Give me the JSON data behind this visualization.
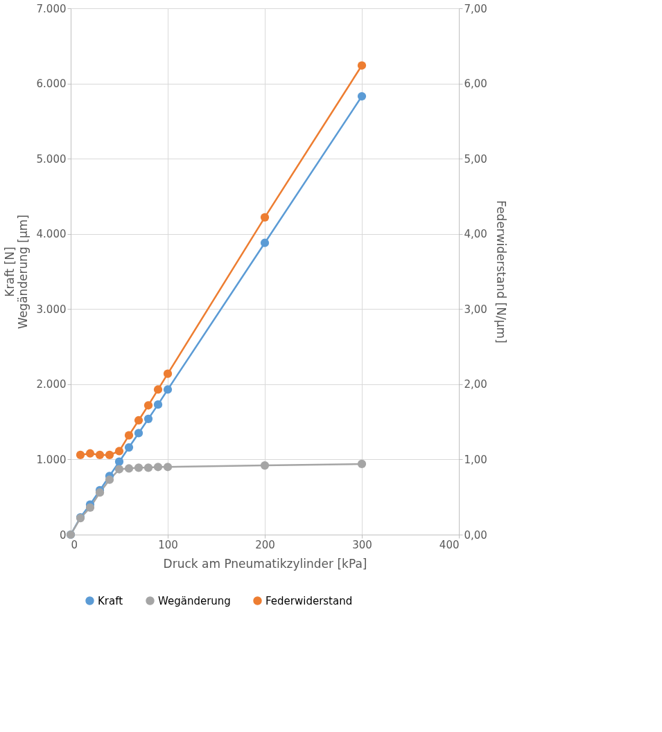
{
  "chart_data": {
    "type": "line",
    "xlabel": "Druck am Pneumatikzylinder [kPa]",
    "ylabel": "Kraft [N]\nWegänderung [µm]",
    "y2label": "Federwiderstand [N/µm]",
    "xlim": [
      0,
      400
    ],
    "xticks": [
      0,
      100,
      200,
      300,
      400
    ],
    "ylim": [
      0,
      7000
    ],
    "yticks": [
      0,
      {
        "value": 1000,
        "label": "1.000"
      },
      {
        "value": 2000,
        "label": "2.000"
      },
      {
        "value": 3000,
        "label": "3.000"
      },
      {
        "value": 4000,
        "label": "4.000"
      },
      {
        "value": 5000,
        "label": "5.000"
      },
      {
        "value": 6000,
        "label": "6.000"
      },
      {
        "value": 7000,
        "label": "7.000"
      }
    ],
    "y2lim": [
      0,
      7
    ],
    "y2ticks": [
      {
        "value": 0,
        "label": "0,00"
      },
      {
        "value": 1,
        "label": "1,00"
      },
      {
        "value": 2,
        "label": "2,00"
      },
      {
        "value": 3,
        "label": "3,00"
      },
      {
        "value": 4,
        "label": "4,00"
      },
      {
        "value": 5,
        "label": "5,00"
      },
      {
        "value": 6,
        "label": "6,00"
      },
      {
        "value": 7,
        "label": "7,00"
      }
    ],
    "grid": true,
    "legend": "bottom",
    "marker": "circle",
    "line_style": "solid",
    "series": [
      {
        "name": "Kraft",
        "color": "#5b9bd5",
        "x": [
          0,
          10,
          20,
          30,
          40,
          50,
          60,
          70,
          80,
          90,
          100,
          200,
          300
        ],
        "values": [
          0,
          230,
          400,
          590,
          780,
          970,
          1160,
          1350,
          1540,
          1730,
          1930,
          3880,
          5830
        ]
      },
      {
        "name": "Wegänderung",
        "color": "#a5a5a5",
        "x": [
          0,
          10,
          20,
          30,
          40,
          50,
          60,
          70,
          80,
          90,
          100,
          200,
          300
        ],
        "values": [
          0,
          220,
          360,
          560,
          730,
          870,
          880,
          890,
          890,
          900,
          900,
          920,
          940
        ]
      },
      {
        "name": "Federwiderstand",
        "color": "#ed7d31",
        "axis": "y2",
        "x": [
          10,
          20,
          30,
          40,
          50,
          60,
          70,
          80,
          90,
          100,
          200,
          300
        ],
        "values": [
          1.06,
          1.08,
          1.06,
          1.06,
          1.11,
          1.32,
          1.52,
          1.72,
          1.93,
          2.14,
          4.22,
          6.24
        ]
      }
    ]
  }
}
